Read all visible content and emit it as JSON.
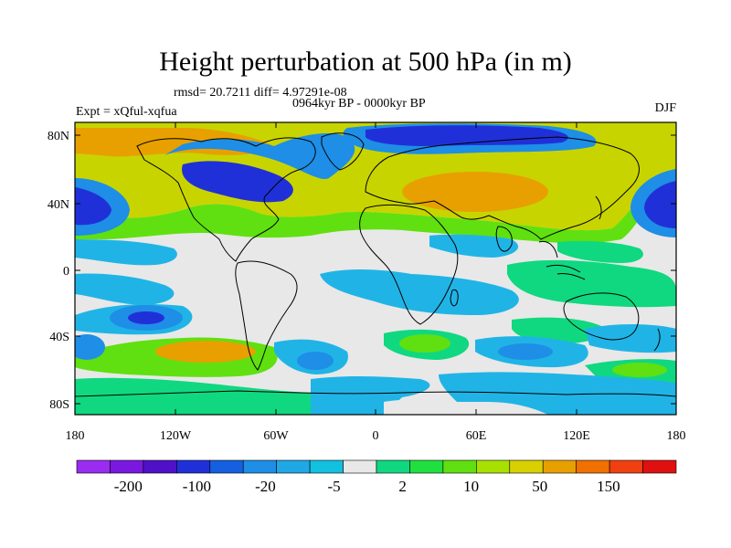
{
  "title": "Height perturbation at 500 hPa (in m)",
  "stats": "rmsd= 20.7211 diff= 4.97291e-08",
  "period": "0964kyr BP - 0000kyr BP",
  "experiment": "Expt = xQful-xqfua",
  "season": "DJF",
  "lat_ticks": [
    "80N",
    "40N",
    "0",
    "40S",
    "80S"
  ],
  "lon_ticks": [
    "180",
    "120W",
    "60W",
    "0",
    "60E",
    "120E",
    "180"
  ],
  "colorbar": {
    "labels": [
      "-200",
      "-100",
      "-20",
      "-5",
      "2",
      "10",
      "50",
      "150"
    ],
    "colors": [
      "#9a2cf0",
      "#7a18e0",
      "#5010c8",
      "#2030d8",
      "#1460e0",
      "#1e8ee6",
      "#20a8e6",
      "#12c0e0",
      "#e8e8e8",
      "#10d880",
      "#20e040",
      "#60e010",
      "#a8e000",
      "#d8d000",
      "#e8a000",
      "#f07000",
      "#f04010",
      "#e01010"
    ]
  },
  "field_colors": {
    "strong_neg": "#2030d8",
    "neg": "#1e8ee6",
    "weak_neg": "#20b4e6",
    "near_zero": "#e8e8e8",
    "weak_pos": "#10d880",
    "pos": "#60e010",
    "strong_pos": "#c8d400",
    "stronger_pos": "#e8a000"
  }
}
